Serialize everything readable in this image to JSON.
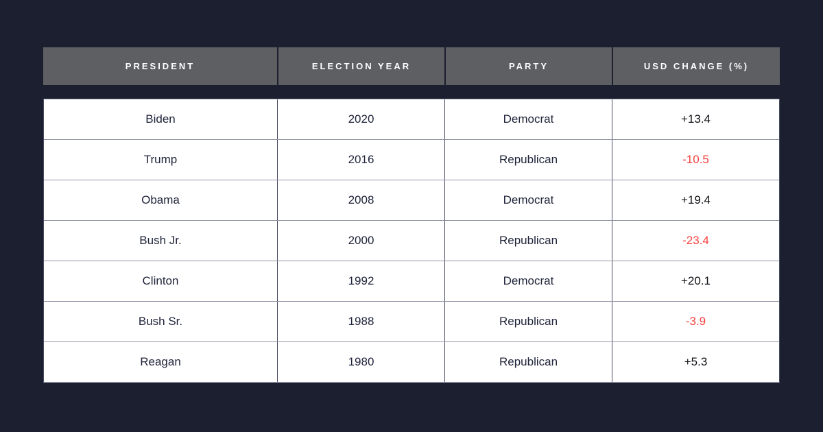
{
  "colors": {
    "background": "#1b1f30",
    "header_bg": "#5e5f63",
    "header_text": "#ffffff",
    "row_bg": "#ffffff",
    "body_text": "#20243a",
    "positive_value_text": "#101117",
    "negative_value_text": "#f4403d",
    "vertical_border": "#474b5e",
    "horizontal_border": "#8f92a2"
  },
  "table": {
    "columns": [
      {
        "label": "PRESIDENT"
      },
      {
        "label": "ELECTION YEAR"
      },
      {
        "label": "PARTY"
      },
      {
        "label": "USD CHANGE (%)"
      }
    ],
    "rows": [
      {
        "president": "Biden",
        "year": "2020",
        "party": "Democrat",
        "usd_change": "+13.4",
        "negative": false
      },
      {
        "president": "Trump",
        "year": "2016",
        "party": "Republican",
        "usd_change": "-10.5",
        "negative": true
      },
      {
        "president": "Obama",
        "year": "2008",
        "party": "Democrat",
        "usd_change": "+19.4",
        "negative": false
      },
      {
        "president": "Bush Jr.",
        "year": "2000",
        "party": "Republican",
        "usd_change": "-23.4",
        "negative": true
      },
      {
        "president": "Clinton",
        "year": "1992",
        "party": "Democrat",
        "usd_change": "+20.1",
        "negative": false
      },
      {
        "president": "Bush Sr.",
        "year": "1988",
        "party": "Republican",
        "usd_change": "-3.9",
        "negative": true
      },
      {
        "president": "Reagan",
        "year": "1980",
        "party": "Republican",
        "usd_change": "+5.3",
        "negative": false
      }
    ]
  },
  "chart_data": {
    "type": "table",
    "title": "",
    "columns": [
      "PRESIDENT",
      "ELECTION YEAR",
      "PARTY",
      "USD CHANGE (%)"
    ],
    "rows": [
      [
        "Biden",
        2020,
        "Democrat",
        13.4
      ],
      [
        "Trump",
        2016,
        "Republican",
        -10.5
      ],
      [
        "Obama",
        2008,
        "Democrat",
        19.4
      ],
      [
        "Bush Jr.",
        2000,
        "Republican",
        -23.4
      ],
      [
        "Clinton",
        1992,
        "Democrat",
        20.1
      ],
      [
        "Bush Sr.",
        1988,
        "Republican",
        -3.9
      ],
      [
        "Reagan",
        1980,
        "Republican",
        5.3
      ]
    ],
    "notes": "USD change (%) values are red when negative, dark when positive"
  }
}
